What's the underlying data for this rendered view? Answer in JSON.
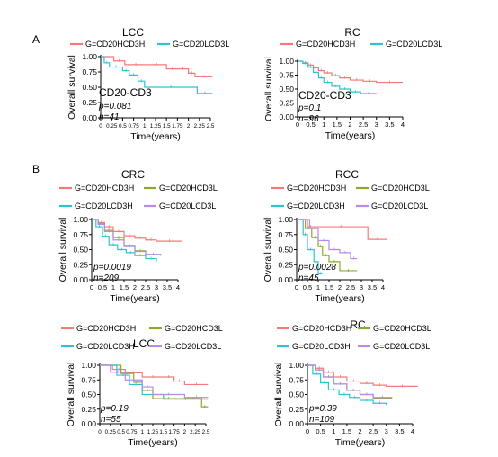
{
  "panel_labels": [
    "A",
    "B"
  ],
  "colors": {
    "hcd3h": "#f47a78",
    "lcd3l": "#2ec4cf",
    "hcd3l": "#8aab2a",
    "lcd3h": "#2ec4cf",
    "lcd3l_4": "#b88be6"
  },
  "chart_data": [
    {
      "type": "line",
      "step": true,
      "title": "LCC",
      "legend": [
        "G=CD20HCD3H",
        "G=CD20LCD3L"
      ],
      "ylabel": "Overall survival",
      "xlabel": "Time(years)",
      "xlim": [
        0,
        2.5
      ],
      "ylim": [
        0,
        1
      ],
      "xticks": [
        "0",
        "0.25",
        "0.5",
        "0.75",
        "1",
        "1.25",
        "1.5",
        "1.75",
        "2",
        "2.25",
        "2.5"
      ],
      "yticks": [
        "0.00",
        "0.25",
        "0.50",
        "0.75",
        "1.00"
      ],
      "annotations": [
        "CD20-CD3",
        "p=0.081",
        "n=41"
      ],
      "series": [
        {
          "name": "G=CD20HCD3H",
          "color": "#f47a78",
          "x": [
            0,
            0.3,
            0.55,
            1.05,
            1.5,
            1.75,
            2.0,
            2.15,
            2.55
          ],
          "y": [
            1,
            0.93,
            0.87,
            0.87,
            0.8,
            0.8,
            0.73,
            0.67,
            0.67
          ]
        },
        {
          "name": "G=CD20LCD3L",
          "color": "#2ec4cf",
          "x": [
            0,
            0.08,
            0.2,
            0.5,
            0.65,
            0.85,
            1.0,
            2.2,
            2.55
          ],
          "y": [
            1,
            0.9,
            0.83,
            0.77,
            0.7,
            0.6,
            0.5,
            0.4,
            0.4
          ]
        }
      ]
    },
    {
      "type": "line",
      "step": true,
      "title": "RC",
      "legend": [
        "G=CD20HCD3H",
        "G=CD20LCD3L"
      ],
      "ylabel": "Overall survival",
      "xlabel": "Time(years)",
      "xlim": [
        0,
        4
      ],
      "ylim": [
        0,
        1
      ],
      "xticks": [
        "0",
        "0.5",
        "1",
        "1.5",
        "2",
        "2.5",
        "3",
        "3.5",
        "4"
      ],
      "yticks": [
        "0.00",
        "0.25",
        "0.50",
        "0.75",
        "1.00"
      ],
      "annotations": [
        "CD20-CD3",
        "p=0.1",
        "n=96"
      ],
      "series": [
        {
          "name": "G=CD20HCD3H",
          "color": "#f47a78",
          "x": [
            0,
            0.2,
            0.4,
            0.6,
            0.8,
            1.0,
            1.3,
            1.6,
            2.0,
            2.5,
            3.0,
            4.0
          ],
          "y": [
            1,
            0.97,
            0.93,
            0.88,
            0.83,
            0.79,
            0.74,
            0.7,
            0.66,
            0.64,
            0.62,
            0.62
          ]
        },
        {
          "name": "G=CD20LCD3L",
          "color": "#2ec4cf",
          "x": [
            0,
            0.2,
            0.4,
            0.6,
            0.8,
            1.0,
            1.3,
            1.6,
            2.0,
            2.4,
            3.0
          ],
          "y": [
            1,
            0.96,
            0.89,
            0.8,
            0.7,
            0.62,
            0.55,
            0.5,
            0.45,
            0.42,
            0.42
          ]
        }
      ]
    },
    {
      "type": "line",
      "step": true,
      "title": "CRC",
      "legend": [
        "G=CD20HCD3H",
        "G=CD20HCD3L",
        "G=CD20LCD3H",
        "G=CD20LCD3L"
      ],
      "ylabel": "Overall survival",
      "xlabel": "Time(years)",
      "xlim": [
        0,
        4
      ],
      "ylim": [
        0,
        1
      ],
      "xticks": [
        "0",
        "0.5",
        "1",
        "1.5",
        "2",
        "2.5",
        "3",
        "3.5",
        "4"
      ],
      "yticks": [
        "0.00",
        "0.25",
        "0.50",
        "0.75",
        "1.00"
      ],
      "annotations": [
        "p=0.0019",
        "n=209"
      ],
      "series": [
        {
          "name": "G=CD20HCD3H",
          "color": "#f47a78",
          "x": [
            0,
            0.3,
            0.6,
            1.0,
            1.5,
            2.0,
            2.5,
            3.0,
            4.2
          ],
          "y": [
            1,
            0.95,
            0.88,
            0.8,
            0.73,
            0.69,
            0.66,
            0.64,
            0.64
          ]
        },
        {
          "name": "G=CD20HCD3L",
          "color": "#8aab2a",
          "x": [
            0,
            0.3,
            0.6,
            1.0,
            1.5,
            2.0,
            2.5,
            3.2
          ],
          "y": [
            1,
            0.93,
            0.82,
            0.7,
            0.57,
            0.48,
            0.42,
            0.4
          ]
        },
        {
          "name": "G=CD20LCD3H",
          "color": "#2ec4cf",
          "x": [
            0,
            0.2,
            0.5,
            0.8,
            1.2,
            1.6,
            2.0,
            2.5,
            3.0
          ],
          "y": [
            1,
            0.88,
            0.72,
            0.58,
            0.5,
            0.45,
            0.4,
            0.35,
            0.3
          ]
        },
        {
          "name": "G=CD20LCD3L",
          "color": "#b88be6",
          "x": [
            0,
            0.3,
            0.6,
            1.0,
            1.5,
            2.0,
            2.5,
            3.2
          ],
          "y": [
            1,
            0.92,
            0.8,
            0.66,
            0.55,
            0.47,
            0.42,
            0.4
          ]
        }
      ]
    },
    {
      "type": "line",
      "step": true,
      "title": "RCC",
      "legend": [
        "G=CD20HCD3H",
        "G=CD20HCD3L",
        "G=CD20LCD3H",
        "G=CD20LCD3L"
      ],
      "ylabel": "Overall survival",
      "xlabel": "Time(years)",
      "xlim": [
        0,
        4
      ],
      "ylim": [
        0,
        1
      ],
      "xticks": [
        "0",
        "0.5",
        "1",
        "1.5",
        "2",
        "2.5",
        "3",
        "3.5",
        "4"
      ],
      "yticks": [
        "0.00",
        "0.25",
        "0.50",
        "0.75",
        "1.00"
      ],
      "annotations": [
        "p=0.0028",
        "n=45"
      ],
      "series": [
        {
          "name": "G=CD20HCD3H",
          "color": "#f47a78",
          "x": [
            0,
            0.5,
            0.8,
            3.3,
            4.2
          ],
          "y": [
            1,
            0.88,
            0.88,
            0.67,
            0.67
          ]
        },
        {
          "name": "G=CD20HCD3L",
          "color": "#8aab2a",
          "x": [
            0,
            0.4,
            0.7,
            1.0,
            1.2,
            1.5,
            2.0,
            2.8
          ],
          "y": [
            1,
            0.85,
            0.7,
            0.55,
            0.4,
            0.3,
            0.15,
            0.15
          ]
        },
        {
          "name": "G=CD20LCD3H",
          "color": "#2ec4cf",
          "x": [
            0,
            0.3,
            0.5,
            0.8,
            1.0,
            1.2
          ],
          "y": [
            1,
            0.75,
            0.5,
            0.3,
            0.1,
            0.1
          ]
        },
        {
          "name": "G=CD20LCD3L",
          "color": "#b88be6",
          "x": [
            0,
            0.6,
            1.0,
            1.5,
            2.0,
            2.5,
            2.8
          ],
          "y": [
            1,
            0.85,
            0.65,
            0.5,
            0.45,
            0.35,
            0.35
          ]
        }
      ]
    },
    {
      "type": "line",
      "step": true,
      "title": "LCC",
      "legend": [
        "G=CD20HCD3H",
        "G=CD20HCD3L",
        "G=CD20LCD3H",
        "G=CD20LCD3L"
      ],
      "ylabel": "Overall survival",
      "xlabel": "Time(years)",
      "xlim": [
        0,
        2.5
      ],
      "ylim": [
        0,
        1
      ],
      "xticks": [
        "0",
        "0.25",
        "0.5",
        "0.75",
        "1",
        "1.25",
        "1.5",
        "1.75",
        "2",
        "2.25",
        "2.5"
      ],
      "yticks": [
        "0.00",
        "0.25",
        "0.50",
        "0.75",
        "1.00"
      ],
      "annotations": [
        "p=0.19",
        "n=55"
      ],
      "series": [
        {
          "name": "G=CD20HCD3H",
          "color": "#f47a78",
          "x": [
            0,
            0.3,
            0.6,
            1.0,
            1.5,
            1.75,
            2.0,
            2.55
          ],
          "y": [
            1,
            0.93,
            0.87,
            0.8,
            0.8,
            0.73,
            0.67,
            0.67
          ]
        },
        {
          "name": "G=CD20HCD3L",
          "color": "#8aab2a",
          "x": [
            0,
            0.5,
            0.8,
            1.0,
            1.25,
            2.0,
            2.4,
            2.55
          ],
          "y": [
            1,
            0.86,
            0.71,
            0.57,
            0.43,
            0.43,
            0.29,
            0.29
          ]
        },
        {
          "name": "G=CD20LCD3H",
          "color": "#2ec4cf",
          "x": [
            0,
            0.4,
            0.7,
            1.0,
            1.5,
            2.55
          ],
          "y": [
            1,
            0.83,
            0.67,
            0.5,
            0.42,
            0.42
          ]
        },
        {
          "name": "G=CD20LCD3L",
          "color": "#b88be6",
          "x": [
            0,
            0.25,
            0.6,
            1.0,
            1.25,
            2.0,
            2.55
          ],
          "y": [
            1,
            0.88,
            0.75,
            0.63,
            0.5,
            0.45,
            0.45
          ]
        }
      ]
    },
    {
      "type": "line",
      "step": true,
      "title": "RC",
      "legend": [
        "G=CD20HCD3H",
        "G=CD20HCD3L",
        "G=CD20LCD3H",
        "G=CD20LCD3L"
      ],
      "ylabel": "Overall survival",
      "xlabel": "Time(years)",
      "xlim": [
        0,
        4
      ],
      "ylim": [
        0,
        1
      ],
      "xticks": [
        "0",
        "0.5",
        "1",
        "1.5",
        "2",
        "2.5",
        "3",
        "3.5",
        "4"
      ],
      "yticks": [
        "0.00",
        "0.25",
        "0.50",
        "0.75",
        "1.00"
      ],
      "annotations": [
        "p=0.39",
        "n=109"
      ],
      "series": [
        {
          "name": "G=CD20HCD3H",
          "color": "#f47a78",
          "x": [
            0,
            0.3,
            0.6,
            1.0,
            1.5,
            2.0,
            2.5,
            3.0,
            4.2
          ],
          "y": [
            1,
            0.95,
            0.88,
            0.8,
            0.73,
            0.69,
            0.66,
            0.64,
            0.64
          ]
        },
        {
          "name": "G=CD20HCD3L",
          "color": "#8aab2a",
          "x": [
            0,
            0.3,
            0.6,
            1.0,
            1.5,
            2.0,
            2.5,
            3.2
          ],
          "y": [
            1,
            0.92,
            0.8,
            0.68,
            0.57,
            0.5,
            0.44,
            0.42
          ]
        },
        {
          "name": "G=CD20LCD3H",
          "color": "#2ec4cf",
          "x": [
            0,
            0.2,
            0.5,
            0.8,
            1.2,
            1.6,
            2.0,
            2.5,
            3.0
          ],
          "y": [
            1,
            0.85,
            0.7,
            0.58,
            0.5,
            0.45,
            0.4,
            0.35,
            0.32
          ]
        },
        {
          "name": "G=CD20LCD3L",
          "color": "#b88be6",
          "x": [
            0,
            0.3,
            0.6,
            1.0,
            1.5,
            2.0,
            2.5,
            3.2
          ],
          "y": [
            1,
            0.92,
            0.8,
            0.68,
            0.57,
            0.5,
            0.45,
            0.42
          ]
        }
      ]
    }
  ]
}
